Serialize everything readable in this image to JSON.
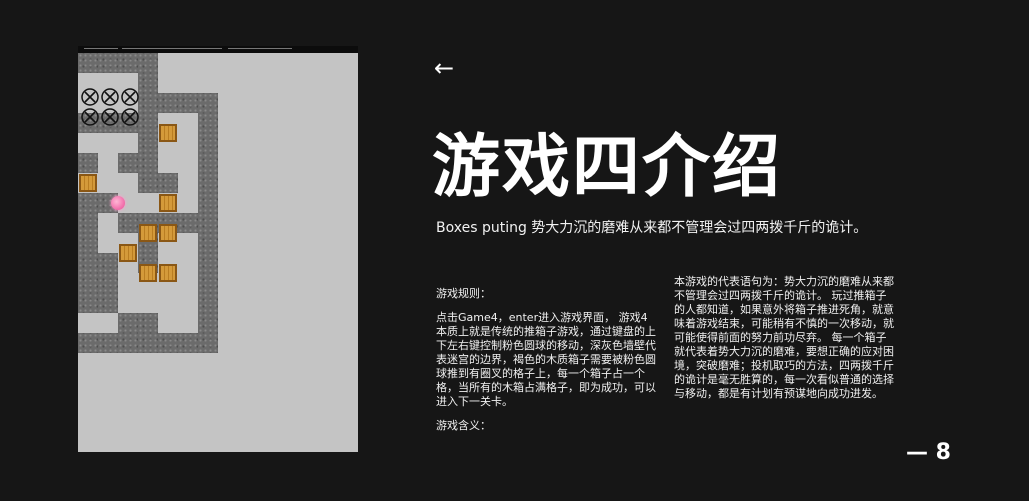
{
  "slide": {
    "back_icon": "arrow-left-icon",
    "title": "游戏四介绍",
    "subtitle": "Boxes puting 势大力沉的磨难从来都不管理会过四两拨千斤的诡计。",
    "rules_label": "游戏规则：",
    "rules_text": "点击Game4，enter进入游戏界面， 游戏4本质上就是传统的推箱子游戏，通过键盘的上下左右键控制粉色圆球的移动，深灰色墙壁代表迷宫的边界，褐色的木质箱子需要被粉色圆球推到有圈叉的格子上，每一个箱子占一个格，当所有的木箱占满格子，即为成功，可以进入下一关卡。",
    "meaning_label": "游戏含义：",
    "meaning_text": "本游戏的代表语句为：势大力沉的磨难从来都不管理会过四两拨千斤的诡计。 玩过推箱子的人都知道，如果意外将箱子推进死角，就意味着游戏结束，可能稍有不慎的一次移动，就可能使得前面的努力前功尽弃。 每一个箱子就代表着势大力沉的磨难，要想正确的应对困境，突破磨难；投机取巧的方法，四两拨千斤的诡计是毫无胜算的，每一次看似普通的选择与移动，都是有计划有预谋地向成功进发。",
    "page_number": "— 8"
  },
  "game_screenshot": {
    "icons": {
      "goal": "goal-cross-icon",
      "box": "wooden-box-icon",
      "player": "pink-ball-icon",
      "wall": "stone-wall-tile"
    }
  }
}
